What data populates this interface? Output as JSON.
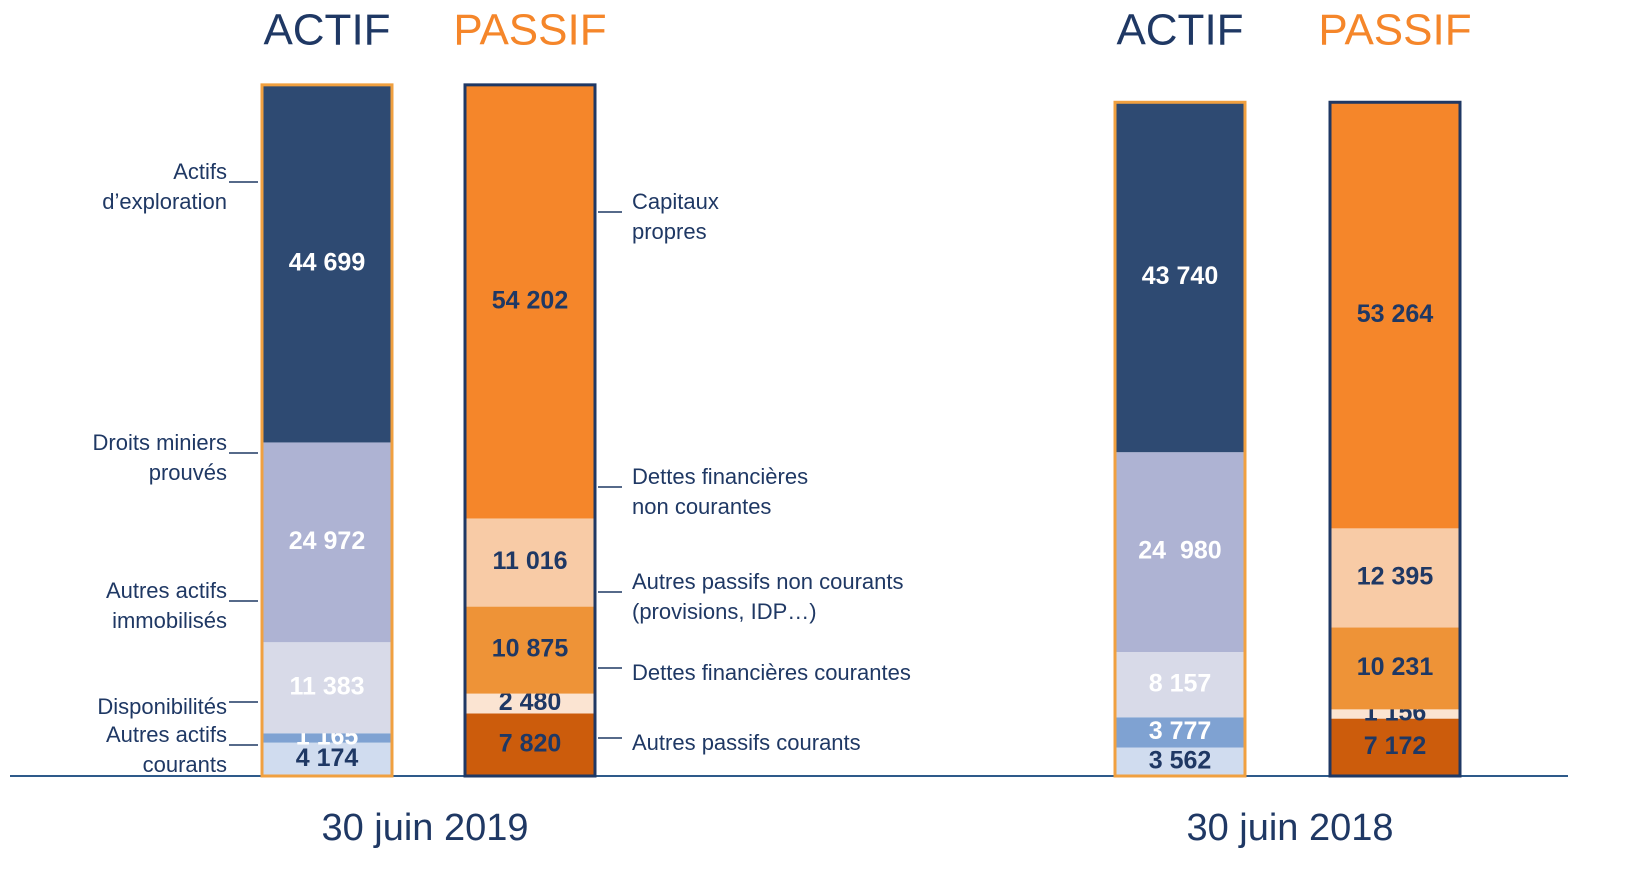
{
  "chart_data": [
    {
      "type": "stacked_bar",
      "title": "30 juin 2019",
      "categories": [
        "ACTIF",
        "PASSIF"
      ],
      "category_colors": [
        "#1f3864",
        "#f5862a"
      ],
      "bar_borders": [
        "#f0a040",
        "#1f3864"
      ],
      "series": [
        {
          "name": "Autres actifs\ncourants",
          "color": "#d0dcef",
          "label_color": "#1f3864",
          "values": [
            4174,
            null
          ],
          "value_labels": [
            "4 174",
            null
          ]
        },
        {
          "name": "Disponibilités",
          "color": "#7fa2d2",
          "label_color": "#ffffff",
          "values": [
            1165,
            null
          ],
          "value_labels": [
            "1 165",
            null
          ]
        },
        {
          "name": "Autres actifs\nimmobilisés",
          "color": "#d8dae8",
          "label_color": "#ffffff",
          "values": [
            11383,
            null
          ],
          "value_labels": [
            "11 383",
            null
          ]
        },
        {
          "name": "Droits miniers\nprouvés",
          "color": "#aeb3d3",
          "label_color": "#ffffff",
          "values": [
            24972,
            null
          ],
          "value_labels": [
            "24 972",
            null
          ]
        },
        {
          "name": "Actifs\nd’exploration",
          "color": "#2e4a72",
          "label_color": "#ffffff",
          "values": [
            44699,
            null
          ],
          "value_labels": [
            "44 699",
            null
          ]
        },
        {
          "name": "Autres passifs courants",
          "color": "#cc5c0c",
          "label_color": "#1f3864",
          "values": [
            null,
            7820
          ],
          "value_labels": [
            null,
            "7 820"
          ]
        },
        {
          "name": "Dettes financières courantes",
          "color": "#fbe4d2",
          "label_color": "#1f3864",
          "values": [
            null,
            2480
          ],
          "value_labels": [
            null,
            "2 480"
          ]
        },
        {
          "name": "Autres passifs non courants\n(provisions, IDP…)",
          "color": "#ee9337",
          "label_color": "#1f3864",
          "values": [
            null,
            10875
          ],
          "value_labels": [
            null,
            "10 875"
          ]
        },
        {
          "name": "Dettes financières\nnon courantes",
          "color": "#f8cba6",
          "label_color": "#1f3864",
          "values": [
            null,
            11016
          ],
          "value_labels": [
            null,
            "11 016"
          ]
        },
        {
          "name": "Capitaux\npropres",
          "color": "#f5862a",
          "label_color": "#1f3864",
          "values": [
            null,
            54202
          ],
          "value_labels": [
            null,
            "54 202"
          ]
        }
      ]
    },
    {
      "type": "stacked_bar",
      "title": "30 juin 2018",
      "categories": [
        "ACTIF",
        "PASSIF"
      ],
      "category_colors": [
        "#1f3864",
        "#f5862a"
      ],
      "bar_borders": [
        "#f0a040",
        "#1f3864"
      ],
      "series": [
        {
          "color": "#d0dcef",
          "label_color": "#1f3864",
          "values": [
            3562,
            null
          ],
          "value_labels": [
            "3 562",
            null
          ]
        },
        {
          "color": "#7fa2d2",
          "label_color": "#ffffff",
          "values": [
            3777,
            null
          ],
          "value_labels": [
            "3 777",
            null
          ]
        },
        {
          "color": "#d8dae8",
          "label_color": "#ffffff",
          "values": [
            8157,
            null
          ],
          "value_labels": [
            "8 157",
            null
          ]
        },
        {
          "color": "#aeb3d3",
          "label_color": "#ffffff",
          "values": [
            24980,
            null
          ],
          "value_labels": [
            "24  980",
            null
          ]
        },
        {
          "color": "#2e4a72",
          "label_color": "#ffffff",
          "values": [
            43740,
            null
          ],
          "value_labels": [
            "43 740",
            null
          ]
        },
        {
          "color": "#cc5c0c",
          "label_color": "#1f3864",
          "values": [
            null,
            7172
          ],
          "value_labels": [
            null,
            "7 172"
          ]
        },
        {
          "color": "#fbe4d2",
          "label_color": "#1f3864",
          "values": [
            null,
            1156
          ],
          "value_labels": [
            null,
            "1 156"
          ]
        },
        {
          "color": "#ee9337",
          "label_color": "#1f3864",
          "values": [
            null,
            10231
          ],
          "value_labels": [
            null,
            "10 231"
          ]
        },
        {
          "color": "#f8cba6",
          "label_color": "#1f3864",
          "values": [
            null,
            12395
          ],
          "value_labels": [
            null,
            "12 395"
          ]
        },
        {
          "color": "#f5862a",
          "label_color": "#1f3864",
          "values": [
            null,
            53264
          ],
          "value_labels": [
            null,
            "53 264"
          ]
        }
      ]
    }
  ]
}
